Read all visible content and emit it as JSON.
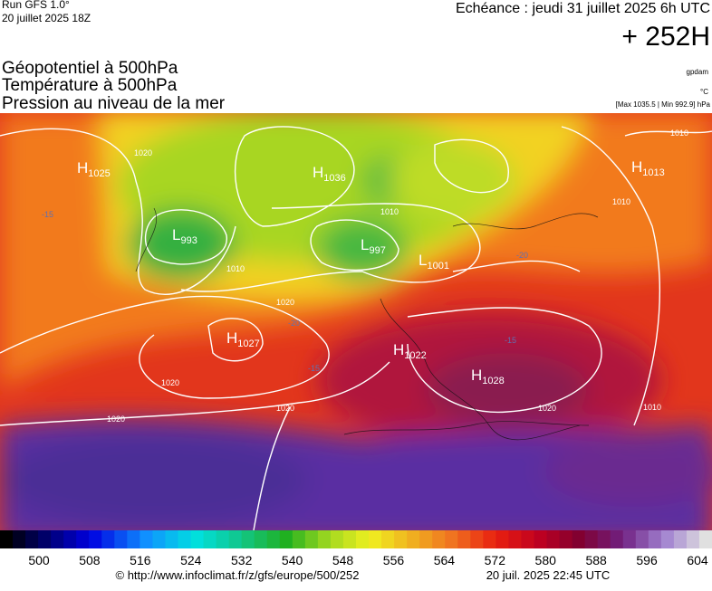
{
  "header": {
    "run": "Run GFS 1.0°",
    "run_date": "20 juillet 2025 18Z",
    "forecast": "Echéance : jeudi 31 juillet 2025 6h UTC",
    "lead": "+ 252H"
  },
  "legend": {
    "lines": [
      "Géopotentiel à 500hPa",
      "Température à 500hPa",
      "Pression au niveau de la mer"
    ],
    "units": [
      "gpdam",
      "°C",
      "[Max 1035.5 | Min 992.9] hPa"
    ]
  },
  "centers": [
    {
      "letter": "H",
      "value": "1025"
    },
    {
      "letter": "L",
      "value": "993"
    },
    {
      "letter": "H",
      "value": "1036"
    },
    {
      "letter": "L",
      "value": "997"
    },
    {
      "letter": "L",
      "value": "1001"
    },
    {
      "letter": "H",
      "value": "1013"
    },
    {
      "letter": "H",
      "value": "1027"
    },
    {
      "letter": "H",
      "value": "1022"
    },
    {
      "letter": "H",
      "value": "1028"
    }
  ],
  "isobar_labels": [
    "1020",
    "1010",
    "1020",
    "1010",
    "1020",
    "1020",
    "1020",
    "1020",
    "1010",
    "1010",
    "1010"
  ],
  "temperature_labels": [
    "-15",
    "-20",
    "-15",
    "-20",
    "-15"
  ],
  "colorbar": {
    "ticks": [
      500,
      508,
      516,
      524,
      532,
      540,
      548,
      556,
      564,
      572,
      580,
      588,
      596,
      604
    ]
  },
  "footer": {
    "source": "© http://www.infoclimat.fr/z/gfs/europe/500/252",
    "generated": "20 juil. 2025 22:45 UTC"
  }
}
